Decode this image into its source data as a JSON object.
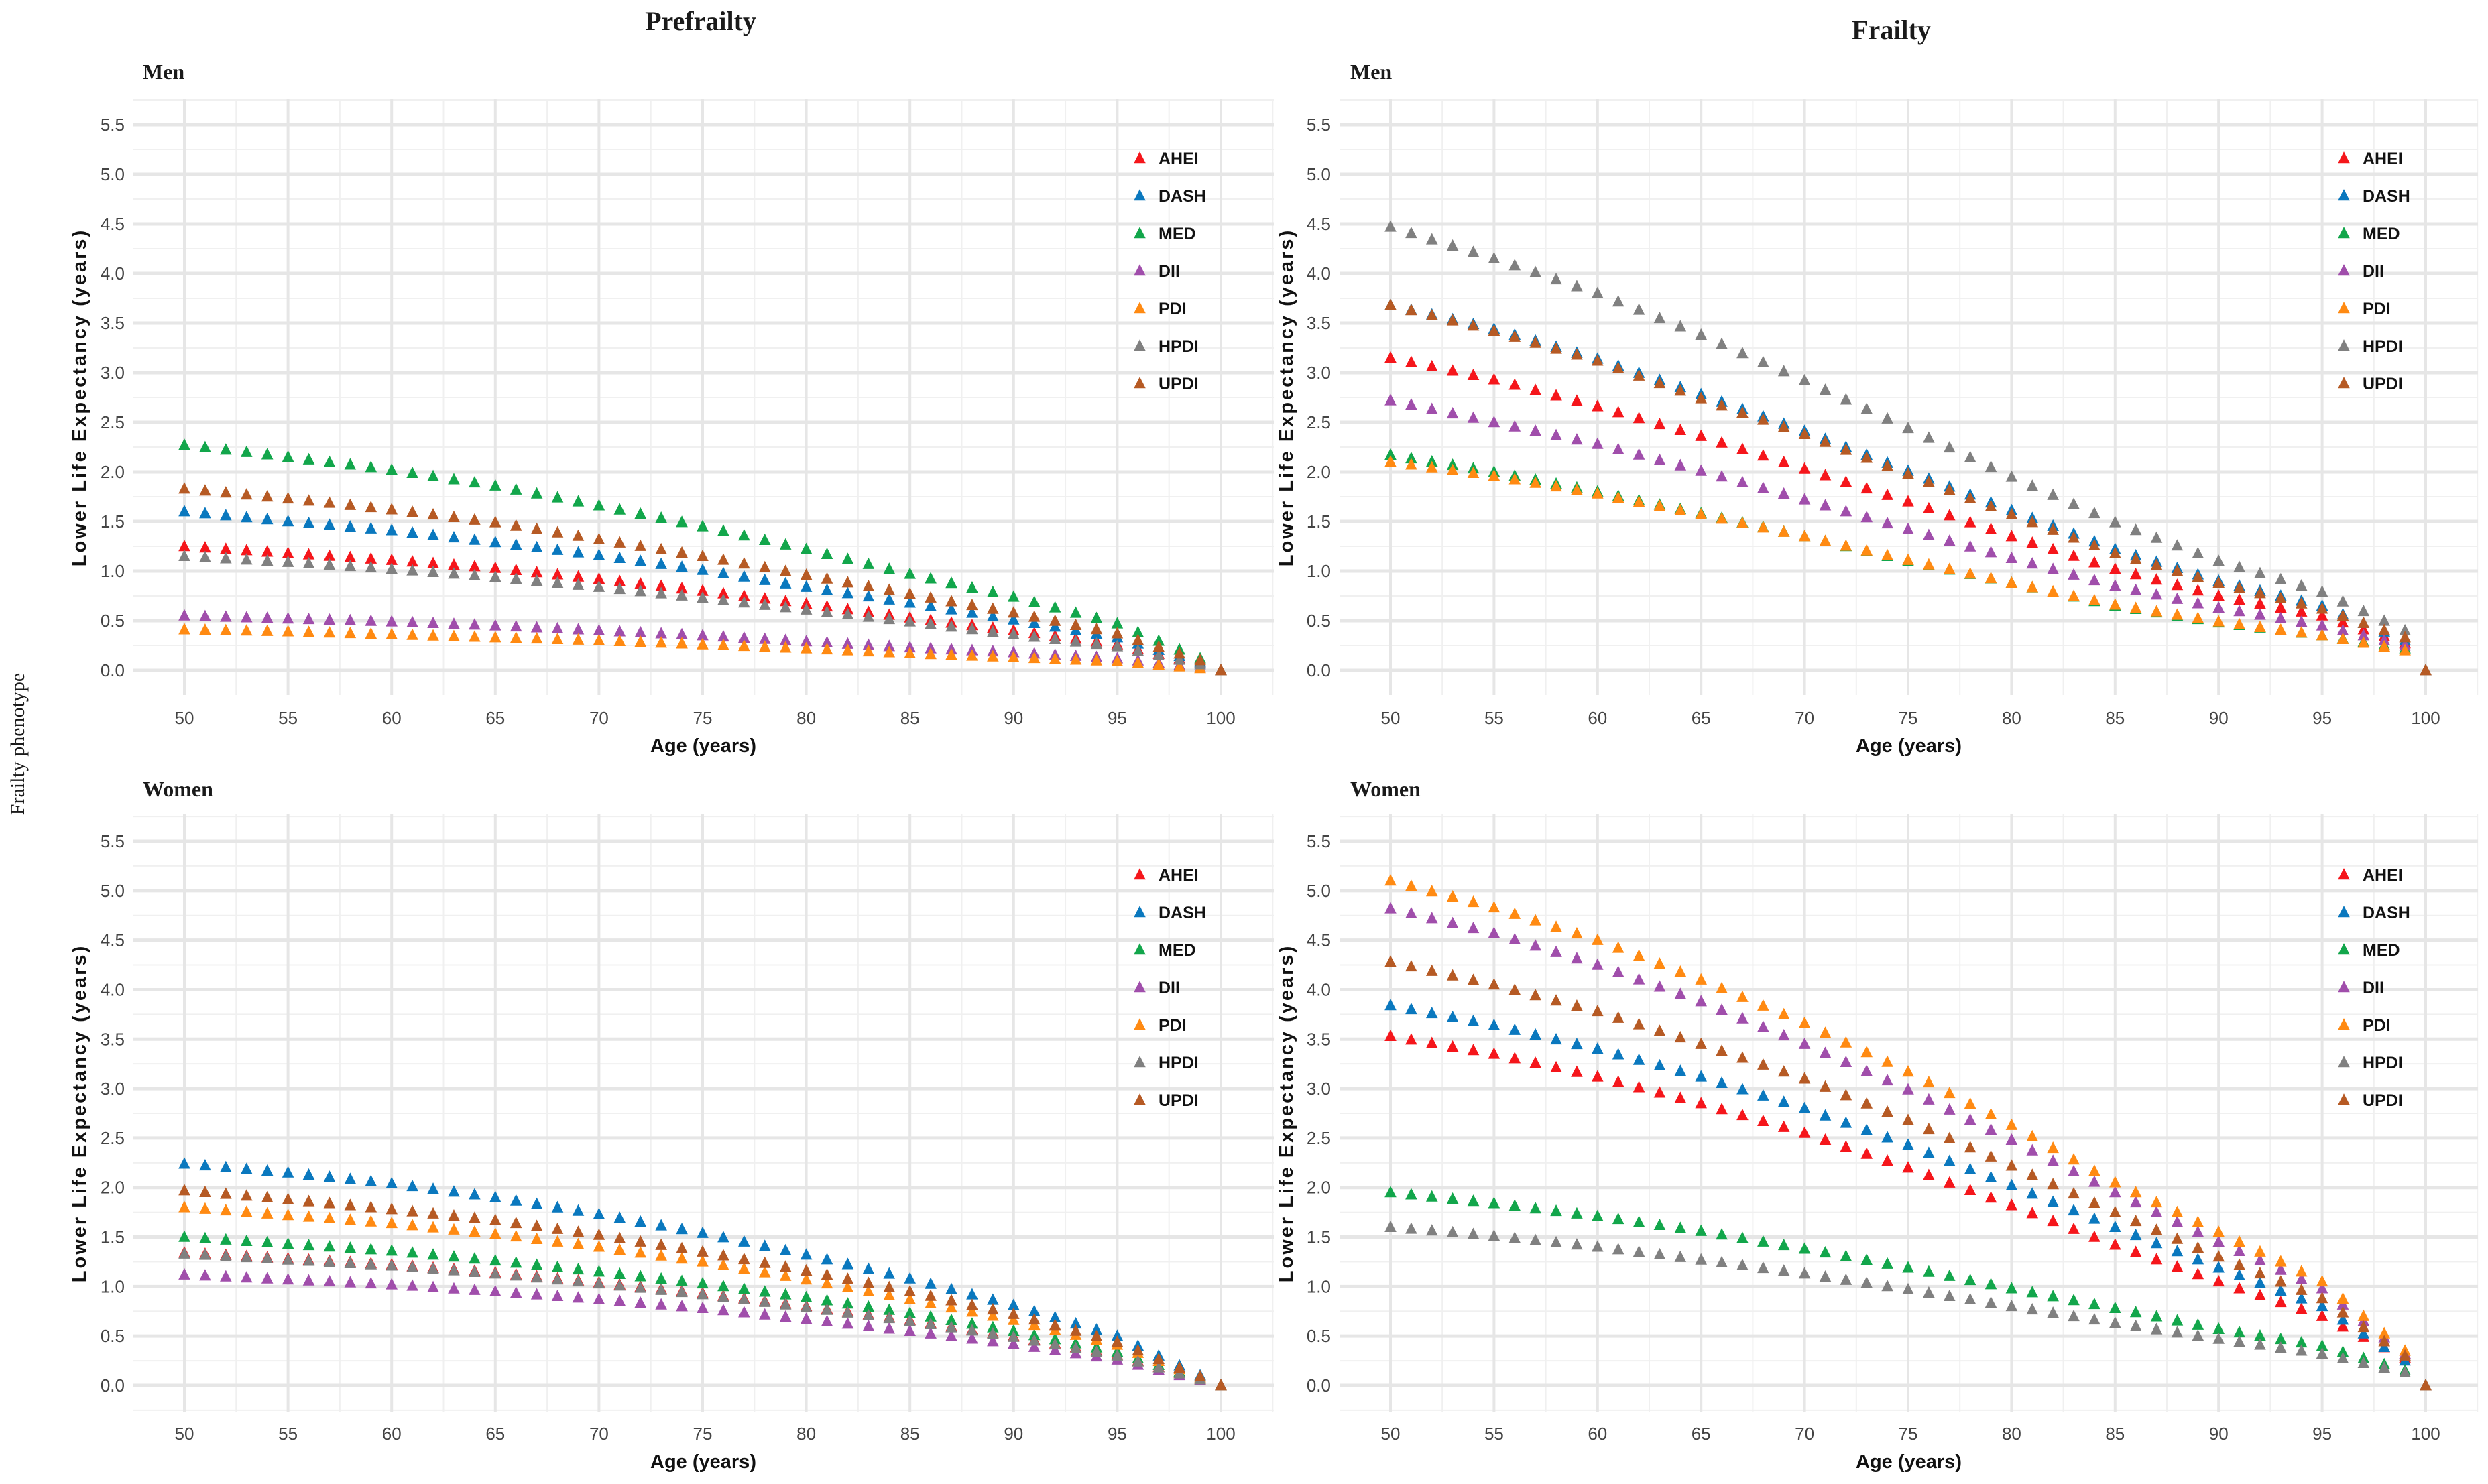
{
  "figure": {
    "column_titles": [
      "Prefrailty",
      "Frailty"
    ],
    "side_label": "Frailty phenotype"
  },
  "colors": {
    "AHEI": "#F5161B",
    "DASH": "#0A78BE",
    "MED": "#12A64B",
    "DII": "#A04EAB",
    "PDI": "#FF8A12",
    "HPDI": "#808080",
    "UPDI": "#B65A24"
  },
  "chart_data": [
    {
      "type": "scatter",
      "column": "Prefrailty",
      "subtitle": "Men",
      "xlabel": "Age (years)",
      "ylabel": "Lower Life Expectancy (years)",
      "xlim": [
        50,
        100
      ],
      "ylim": [
        0,
        5.5
      ],
      "xticks": [
        "50",
        "55",
        "60",
        "65",
        "70",
        "75",
        "80",
        "85",
        "90",
        "95",
        "100"
      ],
      "yticks": [
        "0.0",
        "0.5",
        "1.0",
        "1.5",
        "2.0",
        "2.5",
        "3.0",
        "3.5",
        "4.0",
        "4.5",
        "5.0",
        "5.5"
      ],
      "grid": true,
      "marker": "triangle",
      "legend_position": "top-right",
      "x": [
        50,
        55,
        60,
        65,
        70,
        75,
        80,
        85,
        90,
        95,
        99,
        100
      ],
      "series": [
        {
          "name": "AHEI",
          "values": [
            1.25,
            1.18,
            1.11,
            1.03,
            0.92,
            0.8,
            0.67,
            0.53,
            0.4,
            0.26,
            0.07,
            0
          ]
        },
        {
          "name": "DASH",
          "values": [
            1.6,
            1.5,
            1.41,
            1.29,
            1.16,
            1.01,
            0.84,
            0.68,
            0.51,
            0.33,
            0.08,
            0
          ]
        },
        {
          "name": "MED",
          "values": [
            2.27,
            2.15,
            2.02,
            1.86,
            1.66,
            1.45,
            1.22,
            0.97,
            0.74,
            0.47,
            0.12,
            0
          ]
        },
        {
          "name": "DII",
          "values": [
            0.55,
            0.52,
            0.49,
            0.45,
            0.4,
            0.35,
            0.29,
            0.23,
            0.18,
            0.12,
            0.03,
            0
          ]
        },
        {
          "name": "PDI",
          "values": [
            0.41,
            0.39,
            0.36,
            0.33,
            0.3,
            0.26,
            0.22,
            0.17,
            0.13,
            0.09,
            0.02,
            0
          ]
        },
        {
          "name": "HPDI",
          "values": [
            1.15,
            1.09,
            1.02,
            0.94,
            0.84,
            0.73,
            0.61,
            0.49,
            0.36,
            0.24,
            0.06,
            0
          ]
        },
        {
          "name": "UPDI",
          "values": [
            1.83,
            1.73,
            1.62,
            1.49,
            1.32,
            1.15,
            0.96,
            0.77,
            0.58,
            0.37,
            0.1,
            0
          ]
        }
      ]
    },
    {
      "type": "scatter",
      "column": "Frailty",
      "subtitle": "Men",
      "xlabel": "Age (years)",
      "ylabel": "Lower Life Expectancy (years)",
      "xlim": [
        50,
        100
      ],
      "ylim": [
        0,
        5.5
      ],
      "xticks": [
        "50",
        "55",
        "60",
        "65",
        "70",
        "75",
        "80",
        "85",
        "90",
        "95",
        "100"
      ],
      "yticks": [
        "0.0",
        "0.5",
        "1.0",
        "1.5",
        "2.0",
        "2.5",
        "3.0",
        "3.5",
        "4.0",
        "4.5",
        "5.0",
        "5.5"
      ],
      "grid": true,
      "marker": "triangle",
      "legend_position": "top-right",
      "x": [
        50,
        55,
        60,
        65,
        70,
        75,
        80,
        85,
        90,
        95,
        99,
        100
      ],
      "series": [
        {
          "name": "AHEI",
          "values": [
            3.15,
            2.93,
            2.66,
            2.36,
            2.03,
            1.7,
            1.35,
            1.02,
            0.75,
            0.55,
            0.27,
            0
          ]
        },
        {
          "name": "DASH",
          "values": [
            3.68,
            3.44,
            3.14,
            2.78,
            2.41,
            2.01,
            1.61,
            1.22,
            0.9,
            0.65,
            0.3,
            0
          ]
        },
        {
          "name": "MED",
          "values": [
            2.17,
            2.0,
            1.8,
            1.58,
            1.35,
            1.1,
            0.88,
            0.65,
            0.48,
            0.35,
            0.22,
            0
          ]
        },
        {
          "name": "DII",
          "values": [
            2.72,
            2.5,
            2.28,
            2.01,
            1.72,
            1.42,
            1.13,
            0.85,
            0.63,
            0.45,
            0.25,
            0
          ]
        },
        {
          "name": "PDI",
          "values": [
            2.1,
            1.96,
            1.78,
            1.57,
            1.35,
            1.11,
            0.88,
            0.66,
            0.49,
            0.35,
            0.2,
            0
          ]
        },
        {
          "name": "HPDI",
          "values": [
            4.47,
            4.15,
            3.8,
            3.38,
            2.92,
            2.44,
            1.95,
            1.49,
            1.1,
            0.79,
            0.4,
            0
          ]
        },
        {
          "name": "UPDI",
          "values": [
            3.68,
            3.42,
            3.12,
            2.74,
            2.38,
            1.98,
            1.57,
            1.18,
            0.88,
            0.62,
            0.33,
            0
          ]
        }
      ]
    },
    {
      "type": "scatter",
      "column": "Prefrailty",
      "subtitle": "Women",
      "xlabel": "Age (years)",
      "ylabel": "Lower Life Expectancy (years)",
      "xlim": [
        50,
        100
      ],
      "ylim": [
        0,
        5.5
      ],
      "xticks": [
        "50",
        "55",
        "60",
        "65",
        "70",
        "75",
        "80",
        "85",
        "90",
        "95",
        "100"
      ],
      "yticks": [
        "0.0",
        "0.5",
        "1.0",
        "1.5",
        "2.0",
        "2.5",
        "3.0",
        "3.5",
        "4.0",
        "4.5",
        "5.0",
        "5.5"
      ],
      "grid": true,
      "marker": "triangle",
      "legend_position": "top-right",
      "x": [
        50,
        55,
        60,
        65,
        70,
        75,
        80,
        85,
        90,
        95,
        99,
        100
      ],
      "series": [
        {
          "name": "AHEI",
          "values": [
            1.34,
            1.28,
            1.22,
            1.14,
            1.04,
            0.93,
            0.8,
            0.66,
            0.5,
            0.31,
            0.06,
            0
          ]
        },
        {
          "name": "DASH",
          "values": [
            2.24,
            2.15,
            2.04,
            1.9,
            1.73,
            1.54,
            1.32,
            1.08,
            0.81,
            0.5,
            0.1,
            0
          ]
        },
        {
          "name": "MED",
          "values": [
            1.5,
            1.43,
            1.36,
            1.26,
            1.15,
            1.03,
            0.89,
            0.73,
            0.55,
            0.34,
            0.07,
            0
          ]
        },
        {
          "name": "DII",
          "values": [
            1.12,
            1.07,
            1.02,
            0.95,
            0.87,
            0.78,
            0.67,
            0.55,
            0.42,
            0.26,
            0.05,
            0
          ]
        },
        {
          "name": "PDI",
          "values": [
            1.8,
            1.72,
            1.64,
            1.53,
            1.4,
            1.25,
            1.07,
            0.87,
            0.66,
            0.41,
            0.08,
            0
          ]
        },
        {
          "name": "HPDI",
          "values": [
            1.33,
            1.27,
            1.21,
            1.13,
            1.03,
            0.92,
            0.79,
            0.65,
            0.49,
            0.3,
            0.06,
            0
          ]
        },
        {
          "name": "UPDI",
          "values": [
            1.97,
            1.88,
            1.78,
            1.67,
            1.52,
            1.35,
            1.16,
            0.95,
            0.72,
            0.44,
            0.09,
            0
          ]
        }
      ]
    },
    {
      "type": "scatter",
      "column": "Frailty",
      "subtitle": "Women",
      "xlabel": "Age (years)",
      "ylabel": "Lower Life Expectancy (years)",
      "xlim": [
        50,
        100
      ],
      "ylim": [
        0,
        5.5
      ],
      "xticks": [
        "50",
        "55",
        "60",
        "65",
        "70",
        "75",
        "80",
        "85",
        "90",
        "95",
        "100"
      ],
      "yticks": [
        "0.0",
        "0.5",
        "1.0",
        "1.5",
        "2.0",
        "2.5",
        "3.0",
        "3.5",
        "4.0",
        "4.5",
        "5.0",
        "5.5"
      ],
      "grid": true,
      "marker": "triangle",
      "legend_position": "top-right",
      "x": [
        50,
        55,
        60,
        65,
        70,
        75,
        80,
        85,
        90,
        95,
        99,
        100
      ],
      "series": [
        {
          "name": "AHEI",
          "values": [
            3.53,
            3.35,
            3.12,
            2.85,
            2.55,
            2.2,
            1.82,
            1.42,
            1.05,
            0.7,
            0.28,
            0
          ]
        },
        {
          "name": "DASH",
          "values": [
            3.84,
            3.64,
            3.4,
            3.12,
            2.8,
            2.43,
            2.02,
            1.6,
            1.19,
            0.8,
            0.25,
            0
          ]
        },
        {
          "name": "MED",
          "values": [
            1.95,
            1.84,
            1.71,
            1.56,
            1.38,
            1.19,
            0.98,
            0.78,
            0.57,
            0.4,
            0.15,
            0
          ]
        },
        {
          "name": "DII",
          "values": [
            4.82,
            4.57,
            4.25,
            3.88,
            3.45,
            2.99,
            2.48,
            1.95,
            1.45,
            0.98,
            0.32,
            0
          ]
        },
        {
          "name": "PDI",
          "values": [
            5.1,
            4.83,
            4.5,
            4.1,
            3.66,
            3.17,
            2.63,
            2.05,
            1.55,
            1.05,
            0.35,
            0
          ]
        },
        {
          "name": "HPDI",
          "values": [
            1.6,
            1.51,
            1.4,
            1.27,
            1.13,
            0.97,
            0.8,
            0.63,
            0.47,
            0.32,
            0.13,
            0
          ]
        },
        {
          "name": "UPDI",
          "values": [
            4.28,
            4.05,
            3.78,
            3.45,
            3.1,
            2.68,
            2.22,
            1.75,
            1.3,
            0.88,
            0.3,
            0
          ]
        }
      ]
    }
  ]
}
